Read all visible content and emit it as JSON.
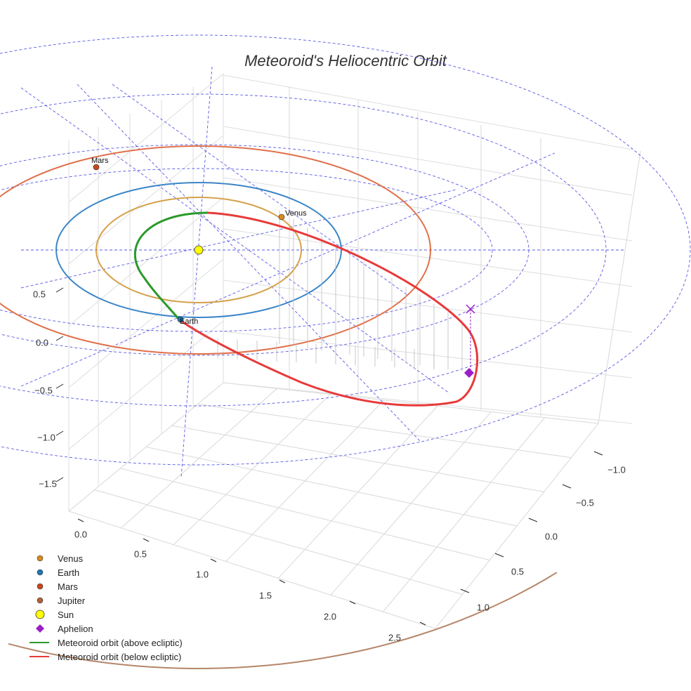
{
  "chart_data": {
    "type": "scatter3d",
    "title": "Meteoroid's Heliocentric Orbit",
    "xlabel": "",
    "ylabel": "",
    "zlabel": "",
    "x_ticks": [
      "0.0",
      "0.5",
      "1.0",
      "1.5",
      "2.0",
      "2.5"
    ],
    "y_ticks": [
      "−1.0",
      "−0.5",
      "0.0",
      "0.5",
      "1.0"
    ],
    "z_ticks": [
      "0.5",
      "0.0",
      "−0.5",
      "−1.0",
      "−1.5"
    ],
    "grid": true,
    "legend_position": "bottom-left",
    "planet_orbits": [
      {
        "name": "Venus",
        "radius_au": 0.72,
        "color": "#d4a14a"
      },
      {
        "name": "Earth",
        "radius_au": 1.0,
        "color": "#3a85c8"
      },
      {
        "name": "Mars",
        "radius_au": 1.52,
        "color": "#e0704a"
      },
      {
        "name": "Jupiter",
        "radius_au": 5.2,
        "color": "#b5866a"
      }
    ],
    "planet_labels": [
      {
        "name": "Mars",
        "label": "Mars"
      },
      {
        "name": "Venus",
        "label": "Venus"
      },
      {
        "name": "Earth",
        "label": "Earth"
      }
    ],
    "sun": {
      "name": "Sun",
      "x": 0,
      "y": 0,
      "z": 0,
      "color": "#ffff00"
    },
    "aphelion": {
      "name": "Aphelion",
      "color": "#9b1fc9"
    },
    "series": [
      {
        "name": "Meteoroid orbit (above ecliptic)",
        "color": "#2a9a2a"
      },
      {
        "name": "Meteoroid orbit (below ecliptic)",
        "color": "#e83a3a"
      }
    ],
    "ecliptic_grid_color": "#5a5ae6"
  },
  "legend": [
    {
      "label": "Venus",
      "kind": "dot",
      "color": "#d98a1f"
    },
    {
      "label": "Earth",
      "kind": "dot",
      "color": "#1f77b4"
    },
    {
      "label": "Mars",
      "kind": "dot",
      "color": "#c8461e"
    },
    {
      "label": "Jupiter",
      "kind": "dot",
      "color": "#b0623a"
    },
    {
      "label": "Sun",
      "kind": "sun",
      "color": "#ffff00"
    },
    {
      "label": "Aphelion",
      "kind": "diamond",
      "color": "#9b1fc9"
    },
    {
      "label": "Meteoroid orbit (above ecliptic)",
      "kind": "line",
      "color": "#2a9a2a"
    },
    {
      "label": "Meteoroid orbit (below ecliptic)",
      "kind": "line",
      "color": "#e83a3a"
    }
  ]
}
